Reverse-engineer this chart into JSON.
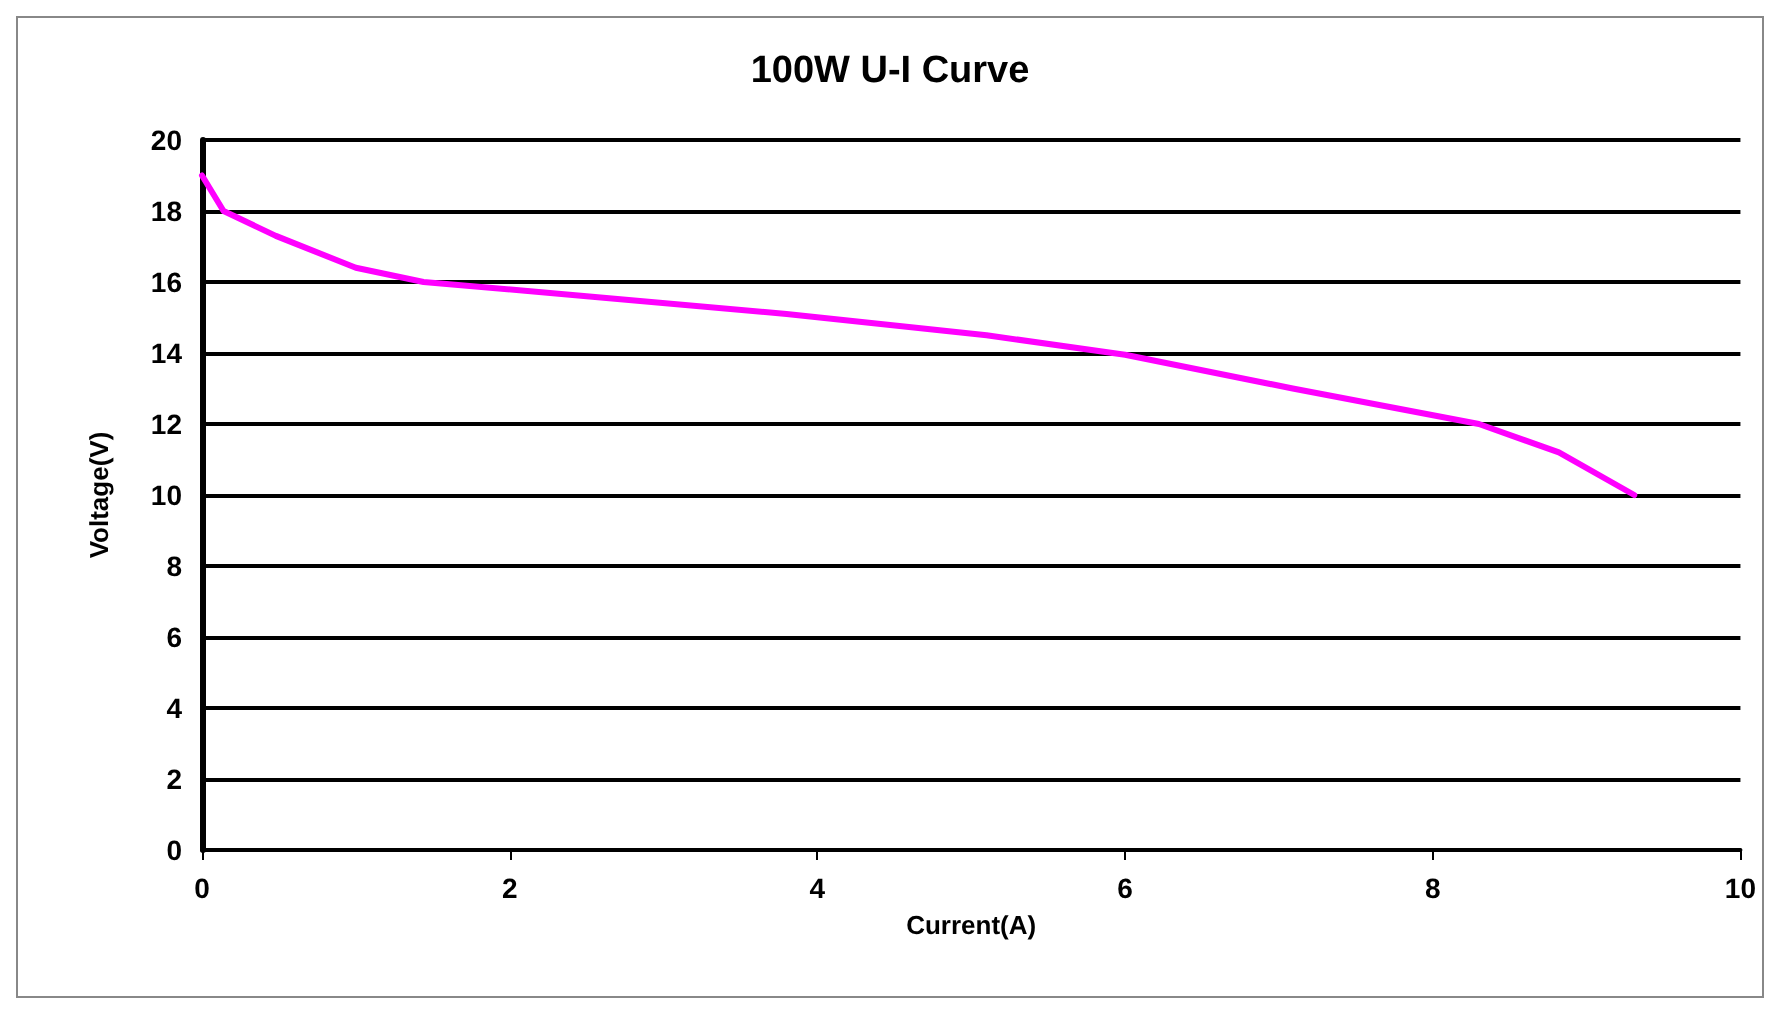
{
  "chart_data": {
    "type": "line",
    "title": "100W U-I Curve",
    "xlabel": "Current(A)",
    "ylabel": "Voltage(V)",
    "series": [
      {
        "color": "#ff00ff",
        "x": [
          0,
          0.14,
          0.48,
          1.0,
          1.44,
          2.5,
          3.8,
          5.1,
          6.0,
          7.09,
          8.3,
          8.82,
          9.31
        ],
        "values": [
          19.0,
          18.0,
          17.3,
          16.4,
          16.0,
          15.6,
          15.1,
          14.5,
          13.95,
          13.0,
          12.0,
          11.2,
          10.0
        ]
      }
    ],
    "xlim": [
      0,
      10
    ],
    "xticks": [
      0,
      2,
      4,
      6,
      8,
      10
    ],
    "ylim": [
      0,
      20
    ],
    "yticks": [
      0,
      2,
      4,
      6,
      8,
      10,
      12,
      14,
      16,
      18,
      20
    ],
    "grid": "y",
    "marker": "none",
    "line_style": "solid"
  }
}
